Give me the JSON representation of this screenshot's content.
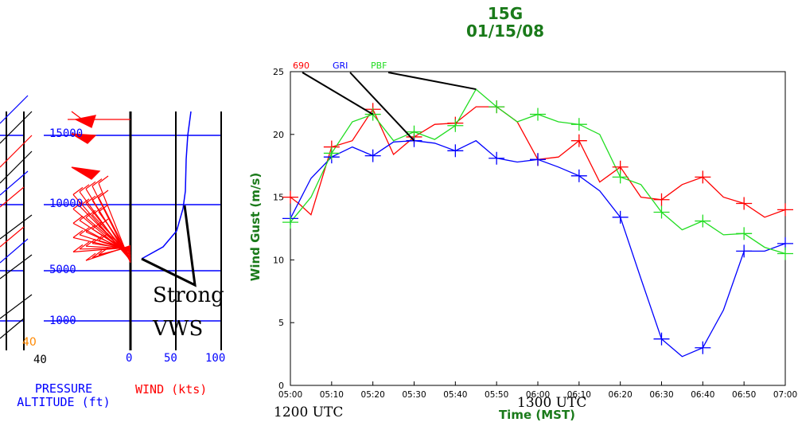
{
  "chart_data": [
    {
      "type": "line",
      "title": "15G",
      "subtitle": "01/15/08",
      "xlabel": "Time (MST)",
      "ylabel": "Wind Gust (m/s)",
      "x_ticks": [
        "05:00",
        "05:10",
        "05:20",
        "05:30",
        "05:40",
        "05:50",
        "06:00",
        "06:10",
        "06:20",
        "06:30",
        "06:40",
        "06:50",
        "07:00"
      ],
      "x_range_minutes": [
        0,
        120
      ],
      "ylim": [
        0,
        25
      ],
      "y_ticks": [
        0,
        5,
        10,
        15,
        20,
        25
      ],
      "grid": false,
      "legend_position": "top-left",
      "annotations": [
        "1200 UTC",
        "1300 UTC"
      ],
      "series": [
        {
          "name": "690",
          "color": "#ff0000",
          "points": [
            [
              0,
              15.0
            ],
            [
              2,
              14.5
            ],
            [
              5,
              13.6
            ],
            [
              10,
              19.0
            ],
            [
              15,
              19.5
            ],
            [
              20,
              22.0
            ],
            [
              25,
              18.4
            ],
            [
              30,
              19.8
            ],
            [
              35,
              20.8
            ],
            [
              40,
              20.9
            ],
            [
              45,
              22.2
            ],
            [
              50,
              22.2
            ],
            [
              55,
              21.0
            ],
            [
              60,
              18.0
            ],
            [
              65,
              18.2
            ],
            [
              70,
              19.5
            ],
            [
              75,
              16.2
            ],
            [
              80,
              17.4
            ],
            [
              85,
              15.0
            ],
            [
              90,
              14.8
            ],
            [
              95,
              16.0
            ],
            [
              100,
              16.6
            ],
            [
              105,
              15.0
            ],
            [
              110,
              14.5
            ],
            [
              115,
              13.4
            ],
            [
              120,
              14.0
            ]
          ],
          "markers": [
            [
              0,
              15.0
            ],
            [
              10,
              19.0
            ],
            [
              20,
              22.0
            ],
            [
              30,
              19.8
            ],
            [
              40,
              20.9
            ],
            [
              50,
              22.2
            ],
            [
              60,
              18.0
            ],
            [
              70,
              19.5
            ],
            [
              80,
              17.4
            ],
            [
              90,
              14.8
            ],
            [
              100,
              16.6
            ],
            [
              110,
              14.5
            ],
            [
              120,
              14.0
            ]
          ]
        },
        {
          "name": "GRI",
          "color": "#0000ff",
          "points": [
            [
              0,
              13.3
            ],
            [
              5,
              16.5
            ],
            [
              10,
              18.2
            ],
            [
              15,
              19.0
            ],
            [
              20,
              18.3
            ],
            [
              25,
              19.4
            ],
            [
              30,
              19.5
            ],
            [
              35,
              19.3
            ],
            [
              40,
              18.7
            ],
            [
              45,
              19.5
            ],
            [
              50,
              18.1
            ],
            [
              55,
              17.8
            ],
            [
              60,
              18.0
            ],
            [
              65,
              17.4
            ],
            [
              70,
              16.7
            ],
            [
              75,
              15.5
            ],
            [
              80,
              13.4
            ],
            [
              85,
              8.5
            ],
            [
              90,
              3.7
            ],
            [
              95,
              2.3
            ],
            [
              100,
              3.0
            ],
            [
              105,
              6.0
            ],
            [
              110,
              10.7
            ],
            [
              115,
              10.7
            ],
            [
              120,
              11.3
            ]
          ],
          "markers": [
            [
              0,
              13.3
            ],
            [
              10,
              18.2
            ],
            [
              20,
              18.3
            ],
            [
              30,
              19.5
            ],
            [
              40,
              18.7
            ],
            [
              50,
              18.1
            ],
            [
              60,
              18.0
            ],
            [
              70,
              16.7
            ],
            [
              80,
              13.4
            ],
            [
              90,
              3.7
            ],
            [
              100,
              3.0
            ],
            [
              110,
              10.7
            ],
            [
              120,
              11.3
            ]
          ]
        },
        {
          "name": "PBF",
          "color": "#22dd22",
          "points": [
            [
              0,
              13.0
            ],
            [
              5,
              15.0
            ],
            [
              10,
              18.5
            ],
            [
              15,
              21.0
            ],
            [
              20,
              21.6
            ],
            [
              25,
              19.5
            ],
            [
              30,
              20.2
            ],
            [
              35,
              19.6
            ],
            [
              40,
              20.7
            ],
            [
              45,
              23.6
            ],
            [
              50,
              22.2
            ],
            [
              55,
              21.0
            ],
            [
              60,
              21.6
            ],
            [
              65,
              21.0
            ],
            [
              70,
              20.8
            ],
            [
              75,
              20.0
            ],
            [
              80,
              16.6
            ],
            [
              85,
              16.0
            ],
            [
              90,
              13.8
            ],
            [
              95,
              12.4
            ],
            [
              100,
              13.1
            ],
            [
              105,
              12.0
            ],
            [
              110,
              12.1
            ],
            [
              115,
              11.0
            ],
            [
              120,
              10.5
            ]
          ],
          "markers": [
            [
              0,
              13.0
            ],
            [
              10,
              18.5
            ],
            [
              20,
              21.6
            ],
            [
              30,
              20.2
            ],
            [
              40,
              20.7
            ],
            [
              50,
              22.2
            ],
            [
              60,
              21.6
            ],
            [
              70,
              20.8
            ],
            [
              80,
              16.6
            ],
            [
              90,
              13.8
            ],
            [
              100,
              13.1
            ],
            [
              110,
              12.1
            ],
            [
              120,
              10.5
            ]
          ]
        }
      ]
    },
    {
      "type": "wind_profile",
      "altitude_ticks": [
        "15000",
        "10000",
        "5000",
        "1000"
      ],
      "bottom_value": "40",
      "extra_value": "40",
      "wind_ticks": [
        "0",
        "50",
        "100"
      ],
      "xlabel_altitude": "PRESSURE ALTITUDE (ft)",
      "xlabel_wind": "WIND (kts)",
      "annotation": "Strong VWS"
    }
  ],
  "colors": {
    "title": "#1a7a1a",
    "red": "#ff0000",
    "blue": "#0000ff",
    "green": "#22dd22"
  }
}
